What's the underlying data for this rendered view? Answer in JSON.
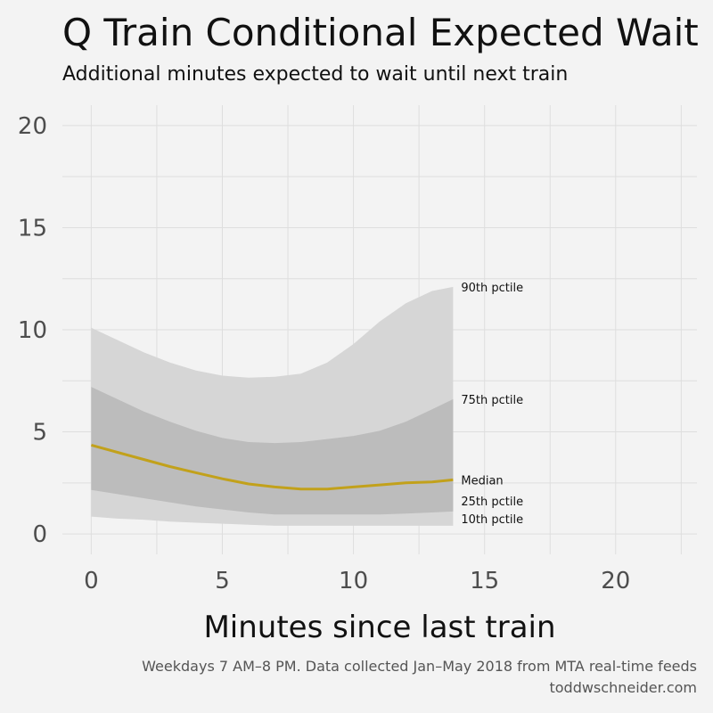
{
  "chart_data": {
    "type": "area",
    "title": "Q Train Conditional Expected Wait",
    "subtitle": "Additional minutes expected to wait until next train",
    "xlabel": "Minutes since last train",
    "ylabel": "",
    "xlim": [
      -1.1,
      23.1
    ],
    "ylim": [
      -1.0,
      21.0
    ],
    "x_ticks": [
      0,
      5,
      10,
      15,
      20
    ],
    "y_ticks": [
      0,
      5,
      10,
      15,
      20
    ],
    "grid": true,
    "x": [
      0,
      1,
      2,
      3,
      4,
      5,
      6,
      7,
      8,
      9,
      10,
      11,
      12,
      13,
      13.8
    ],
    "series": [
      {
        "name": "90th pctile",
        "values": [
          10.1,
          9.5,
          8.9,
          8.4,
          8.0,
          7.75,
          7.65,
          7.7,
          7.85,
          8.4,
          9.3,
          10.4,
          11.3,
          11.9,
          12.1
        ]
      },
      {
        "name": "75th pctile",
        "values": [
          7.2,
          6.6,
          6.0,
          5.5,
          5.05,
          4.7,
          4.5,
          4.45,
          4.5,
          4.65,
          4.8,
          5.05,
          5.5,
          6.1,
          6.6
        ]
      },
      {
        "name": "Median",
        "values": [
          4.35,
          4.0,
          3.65,
          3.3,
          3.0,
          2.7,
          2.45,
          2.3,
          2.2,
          2.2,
          2.3,
          2.4,
          2.5,
          2.55,
          2.65
        ]
      },
      {
        "name": "25th pctile",
        "values": [
          2.15,
          1.95,
          1.75,
          1.55,
          1.35,
          1.2,
          1.05,
          0.95,
          0.95,
          0.95,
          0.95,
          0.95,
          1.0,
          1.05,
          1.1
        ]
      },
      {
        "name": "10th pctile",
        "values": [
          0.85,
          0.75,
          0.7,
          0.6,
          0.55,
          0.5,
          0.45,
          0.4,
          0.4,
          0.4,
          0.4,
          0.4,
          0.4,
          0.4,
          0.4
        ]
      }
    ],
    "colors": {
      "outer_band": "#d6d6d6",
      "inner_band": "#bcbcbc",
      "median_line": "#c2a11b",
      "grid": "#dedede"
    }
  },
  "caption": {
    "line1": "Weekdays 7 AM–8 PM. Data collected Jan–May 2018 from MTA real-time feeds",
    "line2": "toddwschneider.com"
  }
}
